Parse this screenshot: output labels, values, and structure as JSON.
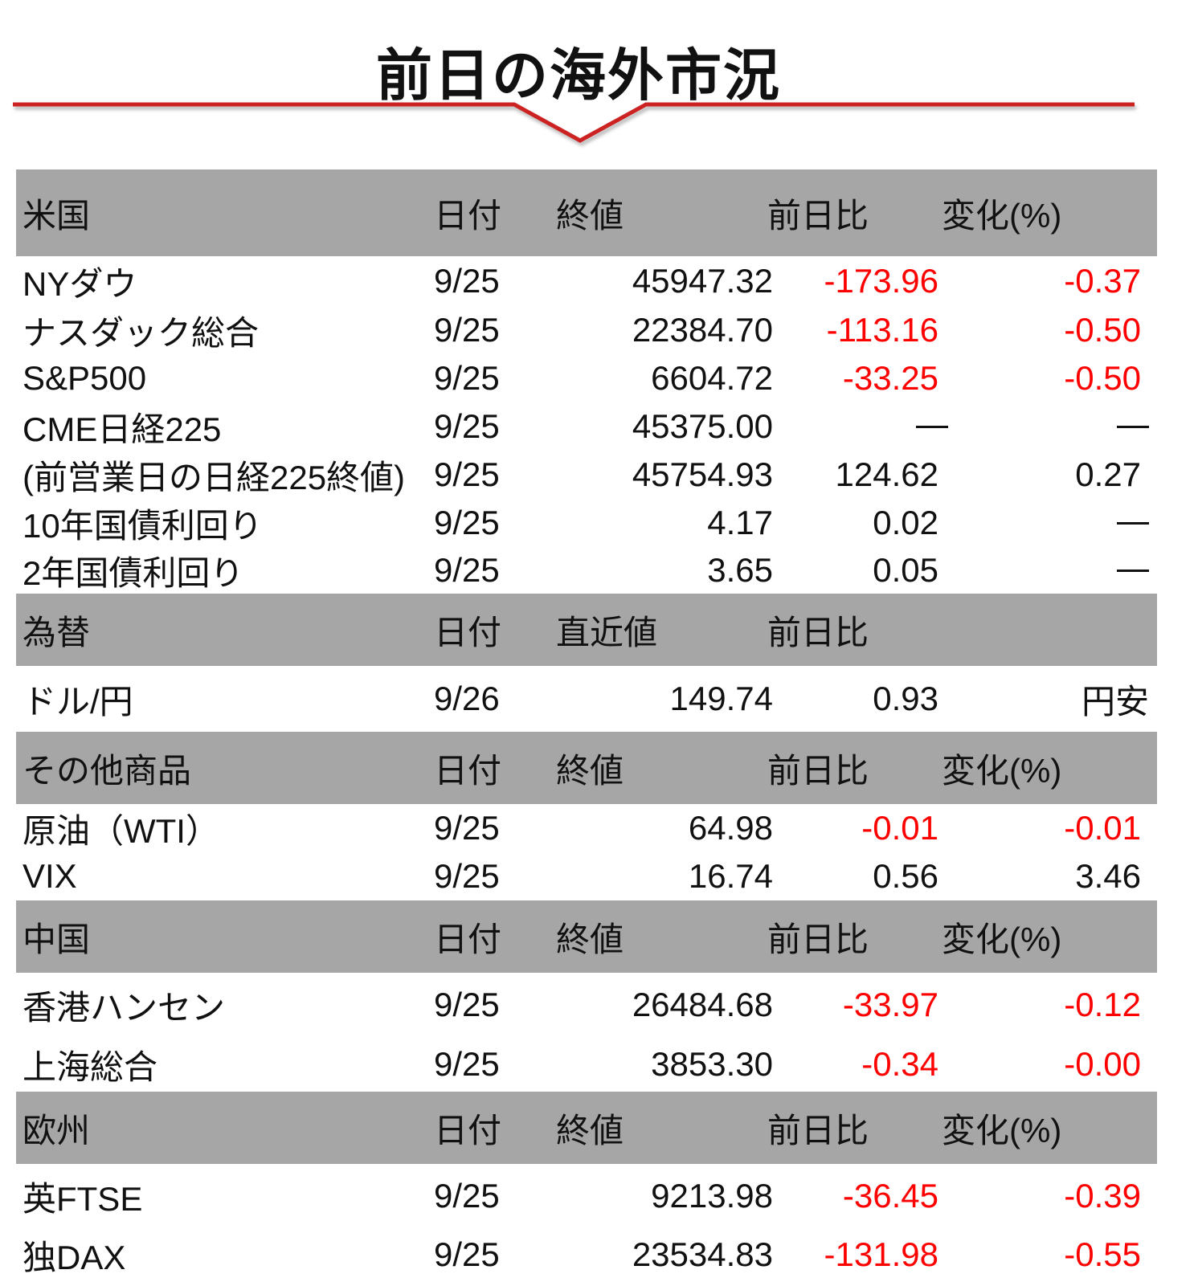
{
  "title": "前日の海外市況",
  "colors": {
    "accent": "#cc2222",
    "header_bg": "#a6a6a6",
    "negative": "#ff0000"
  },
  "sections": [
    {
      "header": {
        "name": "米国",
        "date": "日付",
        "value": "終値",
        "change": "前日比",
        "pct": "変化(%)"
      },
      "rows": [
        {
          "name": "NYダウ",
          "date": "9/25",
          "value": "45947.32",
          "change": "-173.96",
          "pct": "-0.37"
        },
        {
          "name": "ナスダック総合",
          "date": "9/25",
          "value": "22384.70",
          "change": "-113.16",
          "pct": "-0.50"
        },
        {
          "name": "S&P500",
          "date": "9/25",
          "value": "6604.72",
          "change": "-33.25",
          "pct": "-0.50"
        },
        {
          "name": "CME日経225",
          "date": "9/25",
          "value": "45375.00",
          "change": "—",
          "pct": "—"
        },
        {
          "name": "(前営業日の日経225終値)",
          "date": "9/25",
          "value": "45754.93",
          "change": "124.62",
          "pct": "0.27"
        },
        {
          "name": "10年国債利回り",
          "date": "9/25",
          "value": "4.17",
          "change": "0.02",
          "pct": "—"
        },
        {
          "name": "2年国債利回り",
          "date": "9/25",
          "value": "3.65",
          "change": "0.05",
          "pct": "—"
        }
      ]
    },
    {
      "header": {
        "name": "為替",
        "date": "日付",
        "value": "直近値",
        "change": "前日比",
        "pct": ""
      },
      "rows": [
        {
          "name": "ドル/円",
          "date": "9/26",
          "value": "149.74",
          "change": "0.93",
          "pct": "円安"
        }
      ]
    },
    {
      "header": {
        "name": "その他商品",
        "date": "日付",
        "value": "終値",
        "change": "前日比",
        "pct": "変化(%)"
      },
      "rows": [
        {
          "name": "原油（WTI）",
          "date": "9/25",
          "value": "64.98",
          "change": "-0.01",
          "pct": "-0.01"
        },
        {
          "name": "VIX",
          "date": "9/25",
          "value": "16.74",
          "change": "0.56",
          "pct": "3.46"
        }
      ]
    },
    {
      "header": {
        "name": "中国",
        "date": "日付",
        "value": "終値",
        "change": "前日比",
        "pct": "変化(%)"
      },
      "rows": [
        {
          "name": "香港ハンセン",
          "date": "9/25",
          "value": "26484.68",
          "change": "-33.97",
          "pct": "-0.12"
        },
        {
          "name": "上海総合",
          "date": "9/25",
          "value": "3853.30",
          "change": "-0.34",
          "pct": "-0.00"
        }
      ]
    },
    {
      "header": {
        "name": "欧州",
        "date": "日付",
        "value": "終値",
        "change": "前日比",
        "pct": "変化(%)"
      },
      "rows": [
        {
          "name": "英FTSE",
          "date": "9/25",
          "value": "9213.98",
          "change": "-36.45",
          "pct": "-0.39"
        },
        {
          "name": "独DAX",
          "date": "9/25",
          "value": "23534.83",
          "change": "-131.98",
          "pct": "-0.55"
        }
      ]
    }
  ]
}
